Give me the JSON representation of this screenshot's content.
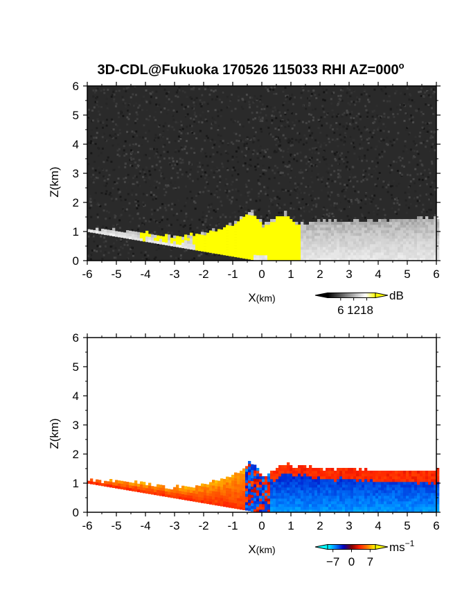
{
  "title": "3D-CDL@Fukuoka 170526 115033 RHI AZ=000",
  "title_degree_mark": "o",
  "chart_data": [
    {
      "type": "heatmap",
      "quantity": "reflectivity",
      "xlabel_main": "X",
      "xlabel_unit": "(km)",
      "ylabel": "Z(km)",
      "xlim": [
        -6,
        6
      ],
      "ylim": [
        0,
        6
      ],
      "xticks": [
        "-6",
        "-5",
        "-4",
        "-3",
        "-2",
        "-1",
        "0",
        "1",
        "2",
        "3",
        "4",
        "5",
        "6"
      ],
      "yticks": [
        "0",
        "1",
        "2",
        "3",
        "4",
        "5",
        "6"
      ],
      "colorbar": {
        "ticks": [
          "6",
          "12",
          "18"
        ],
        "tick_values": [
          6,
          12,
          18
        ],
        "range": [
          0,
          22
        ],
        "unit": "dB",
        "colors": [
          "#000000",
          "#404040",
          "#808080",
          "#c0c0c0",
          "#ffffff",
          "#ffff00"
        ]
      },
      "background_color": "#2a2a2a",
      "signal_color": "#ffff00",
      "echo_top_km": [
        [
          -6,
          1.05
        ],
        [
          -4,
          0.9
        ],
        [
          -3,
          0.8
        ],
        [
          -2,
          0.9
        ],
        [
          -1,
          1.25
        ],
        [
          -0.4,
          1.7
        ],
        [
          0,
          1.2
        ],
        [
          0.8,
          1.6
        ],
        [
          1.2,
          1.2
        ],
        [
          2,
          1.35
        ],
        [
          3,
          1.3
        ],
        [
          4,
          1.35
        ],
        [
          5,
          1.4
        ],
        [
          6,
          1.45
        ]
      ]
    },
    {
      "type": "heatmap",
      "quantity": "radial velocity",
      "xlabel_main": "X",
      "xlabel_unit": "(km)",
      "ylabel": "Z(km)",
      "xlim": [
        -6,
        6
      ],
      "ylim": [
        0,
        6
      ],
      "xticks": [
        "-6",
        "-5",
        "-4",
        "-3",
        "-2",
        "-1",
        "0",
        "1",
        "2",
        "3",
        "4",
        "5",
        "6"
      ],
      "yticks": [
        "0",
        "1",
        "2",
        "3",
        "4",
        "5",
        "6"
      ],
      "colorbar": {
        "ticks": [
          "−7",
          "0",
          "7"
        ],
        "tick_values": [
          -7,
          0,
          7
        ],
        "range": [
          -9,
          9
        ],
        "unit_base": "ms",
        "unit_exp": "−1",
        "colors": [
          "#00ffff",
          "#0080ff",
          "#0000c0",
          "#800000",
          "#ff2000",
          "#ff8000",
          "#ffff00"
        ]
      },
      "echo_top_km": [
        [
          -6,
          1.05
        ],
        [
          -4,
          0.95
        ],
        [
          -3,
          0.8
        ],
        [
          -2,
          0.9
        ],
        [
          -1,
          1.25
        ],
        [
          -0.4,
          1.7
        ],
        [
          0,
          1.2
        ],
        [
          0.8,
          1.6
        ],
        [
          2,
          1.45
        ],
        [
          3,
          1.45
        ],
        [
          4,
          1.4
        ],
        [
          5,
          1.35
        ],
        [
          6,
          1.4
        ]
      ]
    }
  ]
}
